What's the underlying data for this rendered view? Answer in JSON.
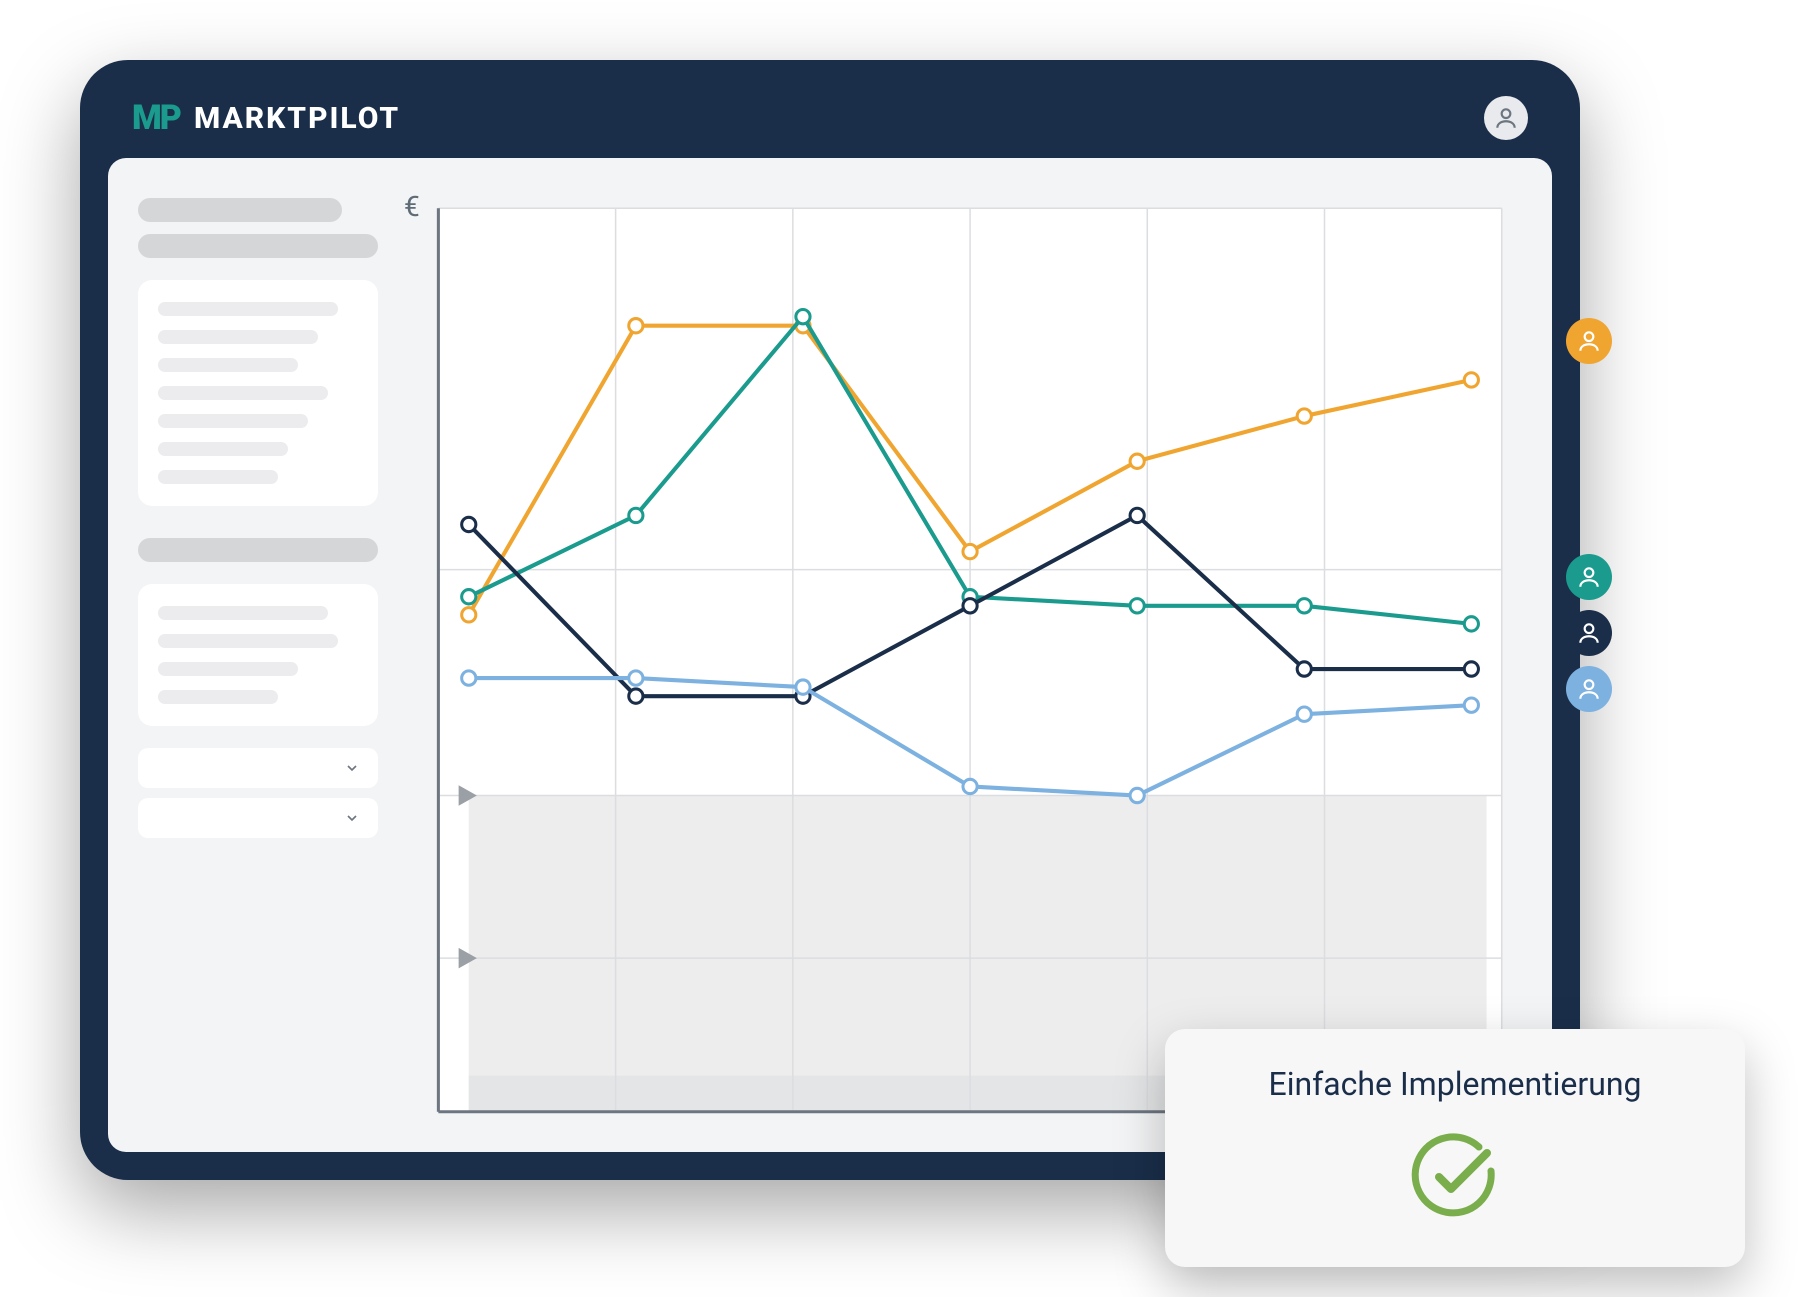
{
  "brand": {
    "mark": "MP",
    "name": "MARKTPILOT"
  },
  "chart": {
    "type": "line",
    "y_axis_label": "€",
    "xlim": [
      0,
      6
    ],
    "ylim": [
      0,
      100
    ],
    "grid_x_cols": 6,
    "grid_y_lines": [
      0,
      17,
      35,
      60,
      100
    ],
    "shaded_band_y": [
      0,
      35
    ],
    "shaded_band_color": "#ededee",
    "shaded_marker_y": [
      17,
      35
    ],
    "marker_color": "#9aa0a5",
    "background_color": "#ffffff",
    "grid_color": "#dcdde0",
    "axis_color": "#6c7580",
    "line_width": 4,
    "marker_radius": 7,
    "marker_fill": "#ffffff",
    "series": [
      {
        "name": "orange",
        "color": "#f0a530",
        "points": [
          [
            0,
            55
          ],
          [
            1,
            87
          ],
          [
            2,
            87
          ],
          [
            3,
            62
          ],
          [
            4,
            72
          ],
          [
            5,
            77
          ],
          [
            6,
            81
          ]
        ]
      },
      {
        "name": "teal",
        "color": "#1a9b8e",
        "points": [
          [
            0,
            57
          ],
          [
            1,
            66
          ],
          [
            2,
            88
          ],
          [
            3,
            57
          ],
          [
            4,
            56
          ],
          [
            5,
            56
          ],
          [
            6,
            54
          ]
        ]
      },
      {
        "name": "navy",
        "color": "#1a2e4a",
        "points": [
          [
            0,
            65
          ],
          [
            1,
            46
          ],
          [
            2,
            46
          ],
          [
            3,
            56
          ],
          [
            4,
            66
          ],
          [
            5,
            49
          ],
          [
            6,
            49
          ]
        ]
      },
      {
        "name": "lightblue",
        "color": "#7db1e0",
        "points": [
          [
            0,
            48
          ],
          [
            1,
            48
          ],
          [
            2,
            47
          ],
          [
            3,
            36
          ],
          [
            4,
            35
          ],
          [
            5,
            44
          ],
          [
            6,
            45
          ]
        ]
      }
    ],
    "legend_icons": [
      {
        "name": "user-orange",
        "color": "#f0a530",
        "stroke": "#ffffff"
      },
      {
        "name": "user-teal",
        "color": "#1a9b8e",
        "stroke": "#ffffff"
      },
      {
        "name": "user-navy",
        "color": "#1a2e4a",
        "stroke": "#ffffff"
      },
      {
        "name": "user-lightblue",
        "color": "#7db1e0",
        "stroke": "#ffffff"
      }
    ]
  },
  "callout": {
    "title": "Einfache Implementierung",
    "check_color": "#7aae4c"
  },
  "colors": {
    "frame_bg": "#1a2e4a",
    "content_bg": "#f3f4f5",
    "card_bg": "#ffffff",
    "skel_dark": "#d4d6d8",
    "skel_light": "#ececee"
  }
}
